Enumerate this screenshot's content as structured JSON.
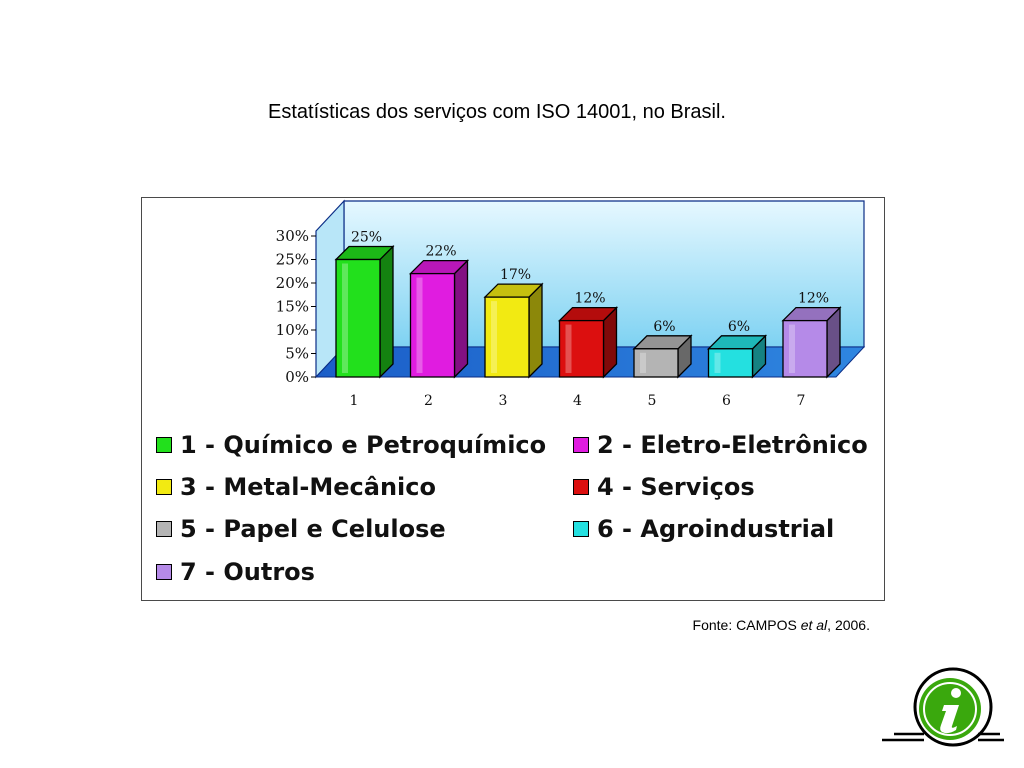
{
  "slide": {
    "title": "Estatísticas dos serviços com ISO 14001, no Brasil.",
    "source_prefix": "Fonte: CAMPOS ",
    "source_italic": "et al",
    "source_suffix": ", 2006."
  },
  "chart_data": {
    "type": "bar",
    "categories": [
      "1",
      "2",
      "3",
      "4",
      "5",
      "6",
      "7"
    ],
    "values": [
      25,
      22,
      17,
      12,
      6,
      6,
      12
    ],
    "data_labels": [
      "25%",
      "22%",
      "17%",
      "12%",
      "6%",
      "6%",
      "12%"
    ],
    "y_ticks": [
      "0%",
      "5%",
      "10%",
      "15%",
      "20%",
      "25%",
      "30%"
    ],
    "ylim": [
      0,
      30
    ],
    "colors": [
      "#22e01c",
      "#e01ce0",
      "#f2ea12",
      "#dc0f0f",
      "#b4b4b4",
      "#24e0e0",
      "#b58ae8"
    ],
    "grid": false,
    "legend_position": "bottom",
    "legend": [
      "1 - Químico e Petroquímico",
      "2 - Eletro-Eletrônico",
      "3 - Metal-Mecânico",
      "4 - Serviços",
      "5 - Papel e Celulose",
      "6 - Agroindustrial",
      "7 - Outros"
    ]
  },
  "icons": {
    "info": "info-icon"
  }
}
